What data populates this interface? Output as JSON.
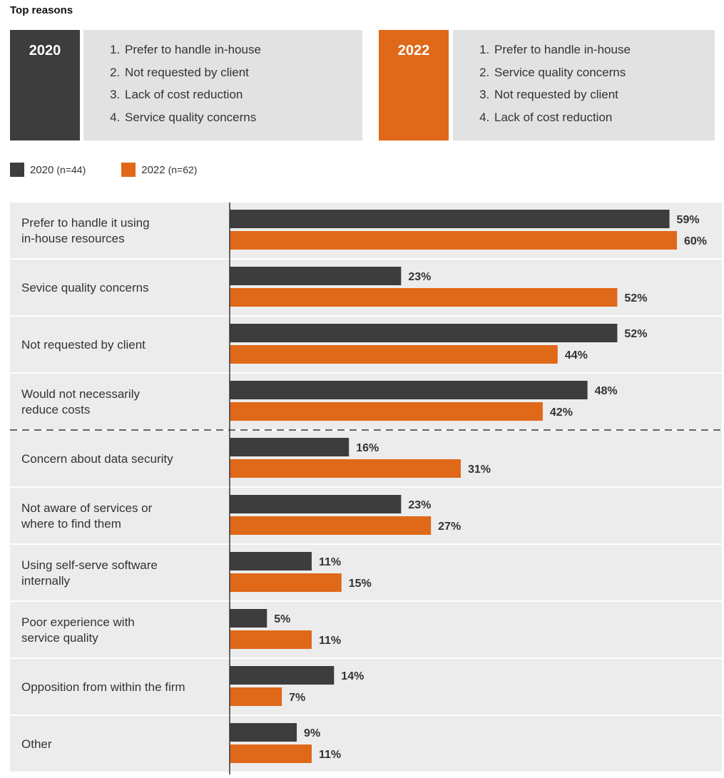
{
  "header": {
    "title": "Top reasons"
  },
  "top_reasons": [
    {
      "year": "2020",
      "color": "#3d3d3d",
      "items": [
        "Prefer to handle in-house",
        "Not requested by client",
        "Lack of cost reduction",
        "Service quality concerns"
      ]
    },
    {
      "year": "2022",
      "color": "#e06819",
      "items": [
        "Prefer to handle in-house",
        "Service quality concerns",
        "Not requested by client",
        "Lack of cost reduction"
      ]
    }
  ],
  "legend": [
    {
      "label": "2020",
      "n": "(n=44)",
      "color": "#3d3d3d"
    },
    {
      "label": "2022",
      "n": "(n=62)",
      "color": "#e06819"
    }
  ],
  "chart_data": {
    "type": "bar",
    "orientation": "horizontal",
    "categories": [
      "Prefer to handle it using in-house resources",
      "Sevice quality concerns",
      "Not requested by client",
      "Would not necessarily reduce costs",
      "Concern about data security",
      "Not aware of services or where to find them",
      "Using self-serve software internally",
      "Poor experience with service quality",
      "Opposition from within the firm",
      "Other"
    ],
    "series": [
      {
        "name": "2020 (n=44)",
        "color": "#3d3d3d",
        "values": [
          59,
          23,
          52,
          48,
          16,
          23,
          11,
          5,
          14,
          9
        ]
      },
      {
        "name": "2022 (n=62)",
        "color": "#e06819",
        "values": [
          60,
          52,
          44,
          42,
          31,
          27,
          15,
          11,
          7,
          11
        ]
      }
    ],
    "value_suffix": "%",
    "xlim": [
      0,
      60
    ],
    "separator_after_index": 3,
    "row_background": "#ececec"
  }
}
